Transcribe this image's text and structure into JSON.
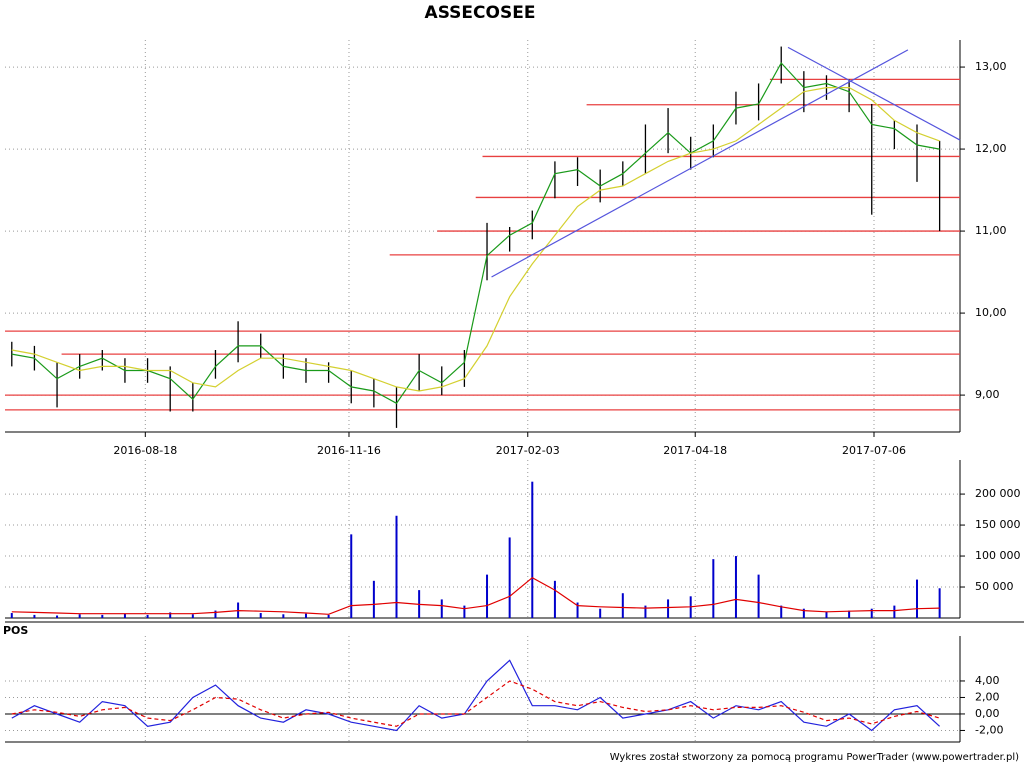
{
  "chart_data": [
    {
      "type": "ohlc",
      "title": "ASSECOSEE",
      "x": [
        "2016-06-20",
        "2016-06-30",
        "2016-07-10",
        "2016-07-20",
        "2016-07-30",
        "2016-08-09",
        "2016-08-19",
        "2016-08-29",
        "2016-09-08",
        "2016-09-18",
        "2016-09-28",
        "2016-10-08",
        "2016-10-18",
        "2016-10-28",
        "2016-11-07",
        "2016-11-17",
        "2016-11-27",
        "2016-12-07",
        "2016-12-17",
        "2016-12-27",
        "2017-01-06",
        "2017-01-16",
        "2017-01-26",
        "2017-02-05",
        "2017-02-15",
        "2017-02-25",
        "2017-03-07",
        "2017-03-17",
        "2017-03-27",
        "2017-04-06",
        "2017-04-16",
        "2017-04-26",
        "2017-05-06",
        "2017-05-16",
        "2017-05-26",
        "2017-06-05",
        "2017-06-15",
        "2017-06-25",
        "2017-07-05",
        "2017-07-15",
        "2017-07-25",
        "2017-08-04"
      ],
      "high": [
        9.65,
        9.6,
        9.4,
        9.5,
        9.55,
        9.45,
        9.45,
        9.35,
        9.15,
        9.55,
        9.9,
        9.75,
        9.5,
        9.45,
        9.4,
        9.3,
        9.2,
        9.1,
        9.5,
        9.35,
        9.55,
        11.1,
        11.05,
        11.25,
        11.85,
        11.9,
        11.75,
        11.85,
        12.3,
        12.5,
        12.15,
        12.3,
        12.7,
        12.8,
        13.25,
        12.95,
        12.9,
        12.85,
        12.55,
        12.35,
        12.3,
        12.1
      ],
      "low": [
        9.35,
        9.3,
        8.85,
        9.2,
        9.3,
        9.15,
        9.15,
        8.8,
        8.8,
        9.2,
        9.4,
        9.45,
        9.2,
        9.15,
        9.15,
        8.9,
        8.85,
        8.6,
        9.05,
        9.0,
        9.1,
        10.4,
        10.75,
        10.9,
        11.4,
        11.55,
        11.35,
        11.55,
        11.7,
        11.95,
        11.75,
        11.9,
        12.3,
        12.35,
        12.8,
        12.45,
        12.6,
        12.45,
        11.2,
        12.0,
        11.6,
        11.0
      ],
      "bar_color": "#000000",
      "series": [
        {
          "color": "#1a9a1a",
          "values": [
            9.5,
            9.45,
            9.2,
            9.35,
            9.45,
            9.3,
            9.3,
            9.2,
            8.95,
            9.35,
            9.6,
            9.6,
            9.35,
            9.3,
            9.3,
            9.1,
            9.05,
            8.9,
            9.3,
            9.15,
            9.4,
            10.7,
            10.95,
            11.1,
            11.7,
            11.75,
            11.55,
            11.7,
            11.95,
            12.2,
            11.95,
            12.1,
            12.5,
            12.55,
            13.05,
            12.75,
            12.8,
            12.7,
            12.3,
            12.25,
            12.05,
            12.0
          ]
        },
        {
          "color": "#d4d030",
          "values": [
            9.55,
            9.5,
            9.4,
            9.3,
            9.35,
            9.35,
            9.3,
            9.3,
            9.15,
            9.1,
            9.3,
            9.45,
            9.45,
            9.4,
            9.35,
            9.3,
            9.2,
            9.1,
            9.05,
            9.1,
            9.2,
            9.6,
            10.2,
            10.6,
            10.95,
            11.3,
            11.5,
            11.55,
            11.7,
            11.85,
            11.95,
            12.0,
            12.1,
            12.3,
            12.5,
            12.7,
            12.75,
            12.75,
            12.6,
            12.35,
            12.2,
            12.1
          ]
        }
      ],
      "hline_color": "#e84040",
      "hlines": [
        {
          "value": 9.78,
          "from": "2016-06-17"
        },
        {
          "value": 9.5,
          "from": "2016-07-12"
        },
        {
          "value": 9.0,
          "from": "2016-06-17"
        },
        {
          "value": 8.82,
          "from": "2016-06-17"
        },
        {
          "value": 10.71,
          "from": "2016-12-04"
        },
        {
          "value": 11.0,
          "from": "2016-12-25"
        },
        {
          "value": 11.41,
          "from": "2017-01-11"
        },
        {
          "value": 11.91,
          "from": "2017-01-14"
        },
        {
          "value": 12.54,
          "from": "2017-03-01"
        },
        {
          "value": 12.85,
          "from": "2017-05-21"
        }
      ],
      "trend_color": "#5555dd",
      "trendlines": [
        {
          "from": [
            "2017-01-18",
            10.44
          ],
          "to": [
            "2017-07-21",
            13.21
          ]
        },
        {
          "from": [
            "2017-05-29",
            13.24
          ],
          "to": [
            "2017-08-13",
            12.11
          ]
        }
      ],
      "xlim": [
        "2016-06-17",
        "2017-08-13"
      ],
      "xticks": [
        "2016-08-18",
        "2016-11-16",
        "2017-02-03",
        "2017-04-18",
        "2017-07-06"
      ],
      "ylim": [
        8.55,
        13.33
      ],
      "yticks": [
        {
          "value": 9,
          "label": "9,00"
        },
        {
          "value": 10,
          "label": "10,00"
        },
        {
          "value": 11,
          "label": "11,00"
        },
        {
          "value": 12,
          "label": "12,00"
        },
        {
          "value": 13,
          "label": "13,00"
        }
      ],
      "grid": true
    },
    {
      "type": "bar",
      "series": [
        {
          "style": "bar",
          "color": "#0000cc",
          "values": [
            8000,
            5000,
            4000,
            6000,
            5000,
            7000,
            5000,
            9000,
            6000,
            12000,
            25000,
            8000,
            6000,
            7000,
            5000,
            135000,
            60000,
            165000,
            45000,
            30000,
            20000,
            70000,
            130000,
            220000,
            60000,
            25000,
            15000,
            40000,
            20000,
            30000,
            35000,
            95000,
            100000,
            70000,
            20000,
            15000,
            10000,
            12000,
            15000,
            20000,
            62000,
            48000
          ]
        },
        {
          "style": "line",
          "color": "#e00000",
          "values": [
            10000,
            9000,
            8000,
            7000,
            7000,
            7000,
            7000,
            7000,
            7000,
            9000,
            12000,
            11000,
            10000,
            8000,
            6000,
            20000,
            22000,
            25000,
            22000,
            20000,
            15000,
            20000,
            35000,
            65000,
            45000,
            20000,
            18000,
            17000,
            16000,
            17000,
            18000,
            22000,
            30000,
            25000,
            18000,
            12000,
            10000,
            11000,
            12000,
            12000,
            15000,
            16000
          ]
        }
      ],
      "ylim": [
        0,
        255000
      ],
      "yticks": [
        {
          "value": 50000,
          "label": "50 000"
        },
        {
          "value": 100000,
          "label": "100 000"
        },
        {
          "value": 150000,
          "label": "150 000"
        },
        {
          "value": 200000,
          "label": "200 000"
        }
      ],
      "grid": true
    },
    {
      "type": "line",
      "title": "POS",
      "series": [
        {
          "color": "#2222dd",
          "dash": false,
          "values": [
            -0.5,
            1,
            0,
            -1,
            1.5,
            1,
            -1.5,
            -1,
            2,
            3.5,
            1,
            -0.5,
            -1,
            0.5,
            0,
            -1,
            -1.5,
            -2,
            1,
            -0.5,
            0,
            4,
            6.5,
            1,
            1,
            0.5,
            2,
            -0.5,
            0,
            0.5,
            1.5,
            -0.5,
            1,
            0.5,
            1.5,
            -1,
            -1.5,
            0,
            -2,
            0.5,
            1,
            -1.5
          ]
        },
        {
          "color": "#e00000",
          "dash": true,
          "values": [
            0,
            0.5,
            0.2,
            -0.3,
            0.5,
            0.8,
            -0.5,
            -0.8,
            0.5,
            2,
            1.8,
            0.5,
            -0.5,
            0,
            0.2,
            -0.5,
            -1,
            -1.5,
            0,
            0,
            0,
            2,
            4,
            3,
            1.5,
            1,
            1.5,
            0.8,
            0.3,
            0.5,
            1,
            0.5,
            0.8,
            0.8,
            1,
            0.2,
            -0.8,
            -0.5,
            -1.2,
            -0.3,
            0.3,
            -0.5
          ]
        }
      ],
      "ylim": [
        -3.4,
        9.45
      ],
      "yticks": [
        {
          "value": -2,
          "label": "-2,00"
        },
        {
          "value": 0,
          "label": "0,00"
        },
        {
          "value": 2,
          "label": "2,00"
        },
        {
          "value": 4,
          "label": "4,00"
        }
      ],
      "zero_line": true,
      "grid": true
    }
  ],
  "footer": "Wykres został stworzony za pomocą programu PowerTrader (www.powertrader.pl)"
}
